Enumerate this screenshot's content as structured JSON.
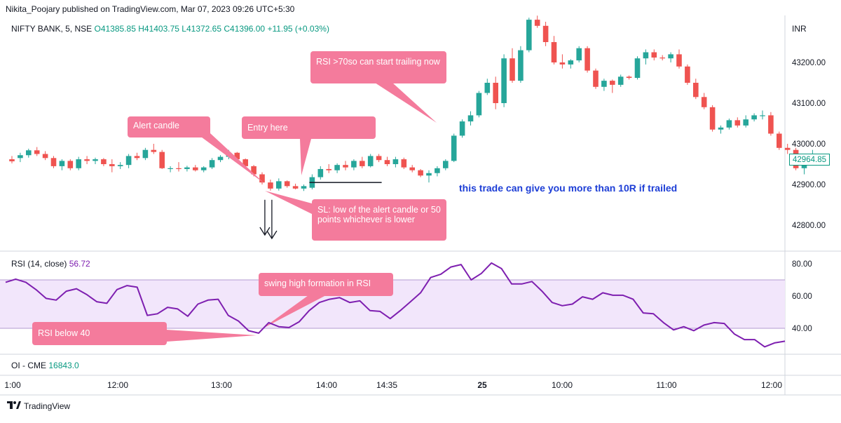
{
  "header": {
    "published_line": "Nikita_Poojary published on TradingView.com, Mar 07, 2023 09:26 UTC+5:30"
  },
  "legend": {
    "symbol": "NIFTY BANK, 5, NSE",
    "open": "O41385.85",
    "high": "H41403.75",
    "low": "L41372.65",
    "close": "C41396.00",
    "change": "+11.95 (+0.03%)"
  },
  "rsi_legend": {
    "label": "RSI (14, close)",
    "value": "56.72"
  },
  "oi_legend": {
    "label": "OI - CME",
    "value": "16843.0"
  },
  "brand": {
    "name": "TradingView"
  },
  "annotations": {
    "alert_candle": "Alert candle",
    "entry_here": "Entry here",
    "rsi_trailing": "RSI >70so can start trailing now",
    "sl_note": "SL: low of the alert candle or 50 points whichever is lower",
    "swing_high": "swing high formation in RSI",
    "rsi_below": "RSI below 40",
    "trade_note": "this trade can give you more than 10R if trailed"
  },
  "colors": {
    "up": "#26a69a",
    "down": "#ef5350",
    "rsi_line": "#7e1fb0",
    "rsi_band": "#f2e6fb",
    "annotation": "#f47b9c",
    "trade_note": "#1d3ed6"
  },
  "chart_data": [
    {
      "type": "candlestick",
      "title": "NIFTY BANK, 5, NSE",
      "ylabel": "INR",
      "ylim": [
        42720,
        43300
      ],
      "y_ticks": [
        42800,
        42900,
        43000,
        43100,
        43200
      ],
      "y_tick_labels": [
        "42800.00",
        "42900.00",
        "43000.00",
        "43100.00",
        "43200.00"
      ],
      "last_price": "42964.85",
      "x_ticks": [
        "1:00",
        "12:00",
        "13:00",
        "14:00",
        "14:35",
        "25",
        "10:00",
        "11:00",
        "12:00"
      ],
      "candles": [
        [
          42962,
          42970,
          42952,
          42957
        ],
        [
          42965,
          42978,
          42955,
          42972
        ],
        [
          42972,
          42988,
          42966,
          42984
        ],
        [
          42984,
          42992,
          42970,
          42975
        ],
        [
          42975,
          42982,
          42960,
          42965
        ],
        [
          42965,
          42970,
          42940,
          42945
        ],
        [
          42945,
          42962,
          42935,
          42958
        ],
        [
          42958,
          42962,
          42935,
          42940
        ],
        [
          42940,
          42968,
          42935,
          42962
        ],
        [
          42962,
          42970,
          42950,
          42958
        ],
        [
          42958,
          42966,
          42950,
          42962
        ],
        [
          42962,
          42965,
          42945,
          42950
        ],
        [
          42950,
          42962,
          42930,
          42945
        ],
        [
          42945,
          42955,
          42938,
          42948
        ],
        [
          42948,
          42975,
          42940,
          42970
        ],
        [
          42970,
          42978,
          42960,
          42965
        ],
        [
          42965,
          42990,
          42960,
          42985
        ],
        [
          42985,
          43000,
          42975,
          42980
        ],
        [
          42980,
          42985,
          42938,
          42940
        ],
        [
          42938,
          42945,
          42930,
          42940
        ],
        [
          42940,
          42955,
          42932,
          42938
        ],
        [
          42938,
          42946,
          42932,
          42942
        ],
        [
          42942,
          42948,
          42932,
          42935
        ],
        [
          42935,
          42945,
          42930,
          42942
        ],
        [
          42942,
          42965,
          42938,
          42960
        ],
        [
          42960,
          42972,
          42955,
          42968
        ],
        [
          42968,
          42985,
          42962,
          42978
        ],
        [
          42978,
          42980,
          42958,
          42962
        ],
        [
          42962,
          42964,
          42940,
          42945
        ],
        [
          42945,
          42948,
          42920,
          42925
        ],
        [
          42925,
          42930,
          42900,
          42905
        ],
        [
          42905,
          42912,
          42885,
          42890
        ],
        [
          42890,
          42915,
          42885,
          42908
        ],
        [
          42908,
          42910,
          42892,
          42896
        ],
        [
          42896,
          42902,
          42888,
          42890
        ],
        [
          42890,
          42900,
          42884,
          42896
        ],
        [
          42892,
          42925,
          42888,
          42918
        ],
        [
          42918,
          42945,
          42912,
          42938
        ],
        [
          42938,
          42950,
          42928,
          42935
        ],
        [
          42935,
          42952,
          42928,
          42948
        ],
        [
          42948,
          42958,
          42935,
          42942
        ],
        [
          42942,
          42962,
          42935,
          42958
        ],
        [
          42958,
          42968,
          42940,
          42945
        ],
        [
          42945,
          42975,
          42942,
          42970
        ],
        [
          42970,
          42975,
          42955,
          42960
        ],
        [
          42960,
          42968,
          42945,
          42950
        ],
        [
          42950,
          42968,
          42942,
          42962
        ],
        [
          42962,
          42966,
          42938,
          42942
        ],
        [
          42942,
          42948,
          42930,
          42935
        ],
        [
          42935,
          42938,
          42918,
          42922
        ],
        [
          42922,
          42935,
          42905,
          42928
        ],
        [
          42928,
          42945,
          42920,
          42940
        ],
        [
          42940,
          42962,
          42935,
          42958
        ],
        [
          42958,
          43025,
          42955,
          43020
        ],
        [
          43020,
          43060,
          43015,
          43055
        ],
        [
          43055,
          43080,
          43045,
          43070
        ],
        [
          43070,
          43130,
          43065,
          43125
        ],
        [
          43125,
          43160,
          43120,
          43150
        ],
        [
          43150,
          43165,
          43085,
          43100
        ],
        [
          43100,
          43220,
          43090,
          43210
        ],
        [
          43210,
          43235,
          43150,
          43155
        ],
        [
          43155,
          43240,
          43150,
          43230
        ],
        [
          43230,
          43310,
          43225,
          43305
        ],
        [
          43305,
          43315,
          43285,
          43290
        ],
        [
          43290,
          43300,
          43240,
          43250
        ],
        [
          43250,
          43265,
          43195,
          43200
        ],
        [
          43200,
          43220,
          43185,
          43195
        ],
        [
          43195,
          43208,
          43185,
          43205
        ],
        [
          43205,
          43240,
          43200,
          43235
        ],
        [
          43235,
          43240,
          43175,
          43180
        ],
        [
          43180,
          43185,
          43135,
          43140
        ],
        [
          43140,
          43160,
          43130,
          43155
        ],
        [
          43155,
          43158,
          43125,
          43145
        ],
        [
          43145,
          43170,
          43140,
          43165
        ],
        [
          43165,
          43168,
          43158,
          43162
        ],
        [
          43162,
          43215,
          43158,
          43210
        ],
        [
          43210,
          43232,
          43195,
          43225
        ],
        [
          43225,
          43232,
          43205,
          43212
        ],
        [
          43212,
          43218,
          43205,
          43210
        ],
        [
          43210,
          43225,
          43200,
          43220
        ],
        [
          43220,
          43232,
          43185,
          43190
        ],
        [
          43190,
          43195,
          43145,
          43150
        ],
        [
          43150,
          43160,
          43110,
          43115
        ],
        [
          43115,
          43125,
          43085,
          43090
        ],
        [
          43090,
          43095,
          43030,
          43035
        ],
        [
          43035,
          43045,
          43025,
          43040
        ],
        [
          43040,
          43062,
          43035,
          43058
        ],
        [
          43058,
          43065,
          43040,
          43045
        ],
        [
          43045,
          43070,
          43040,
          43060
        ],
        [
          43060,
          43075,
          43055,
          43070
        ],
        [
          43068,
          43082,
          43060,
          43070
        ],
        [
          43070,
          43078,
          43020,
          43025
        ],
        [
          43025,
          43030,
          42985,
          42990
        ],
        [
          42990,
          43000,
          42975,
          42985
        ],
        [
          42985,
          42990,
          42935,
          42940
        ],
        [
          42940,
          42965,
          42925,
          42962
        ],
        [
          42962,
          42985,
          42955,
          42966
        ]
      ],
      "horizontal_line": {
        "from_candle": 36,
        "to_candle": 44,
        "price": 42905
      },
      "box_patterns": {
        "down": [
          31,
          32,
          33
        ],
        "up": []
      }
    },
    {
      "type": "line",
      "title": "RSI (14, close)",
      "ylim": [
        25,
        85
      ],
      "y_ticks": [
        40,
        60,
        80
      ],
      "y_tick_labels": [
        "40.00",
        "60.00",
        "80.00"
      ],
      "band": [
        40,
        70
      ],
      "values": [
        68.5,
        70.5,
        68.5,
        64,
        58.5,
        57.5,
        63,
        64.5,
        61,
        56.5,
        55.5,
        64,
        66.5,
        65.5,
        48,
        49,
        53,
        52,
        47.5,
        55,
        57.5,
        58,
        48,
        44.5,
        38.5,
        37,
        43.5,
        41,
        40.5,
        44,
        51,
        56,
        58,
        59,
        56,
        57,
        51,
        50.5,
        46,
        51,
        56.5,
        62,
        71.5,
        73.5,
        78,
        79.5,
        70,
        74,
        80.5,
        77,
        67.5,
        67.5,
        69,
        63,
        56,
        54,
        55,
        59.5,
        58,
        62,
        60.5,
        60.5,
        58,
        49.5,
        49,
        43.5,
        39,
        41,
        38.5,
        42,
        43.5,
        43,
        36.5,
        33,
        33,
        28.5,
        31,
        32
      ]
    }
  ]
}
